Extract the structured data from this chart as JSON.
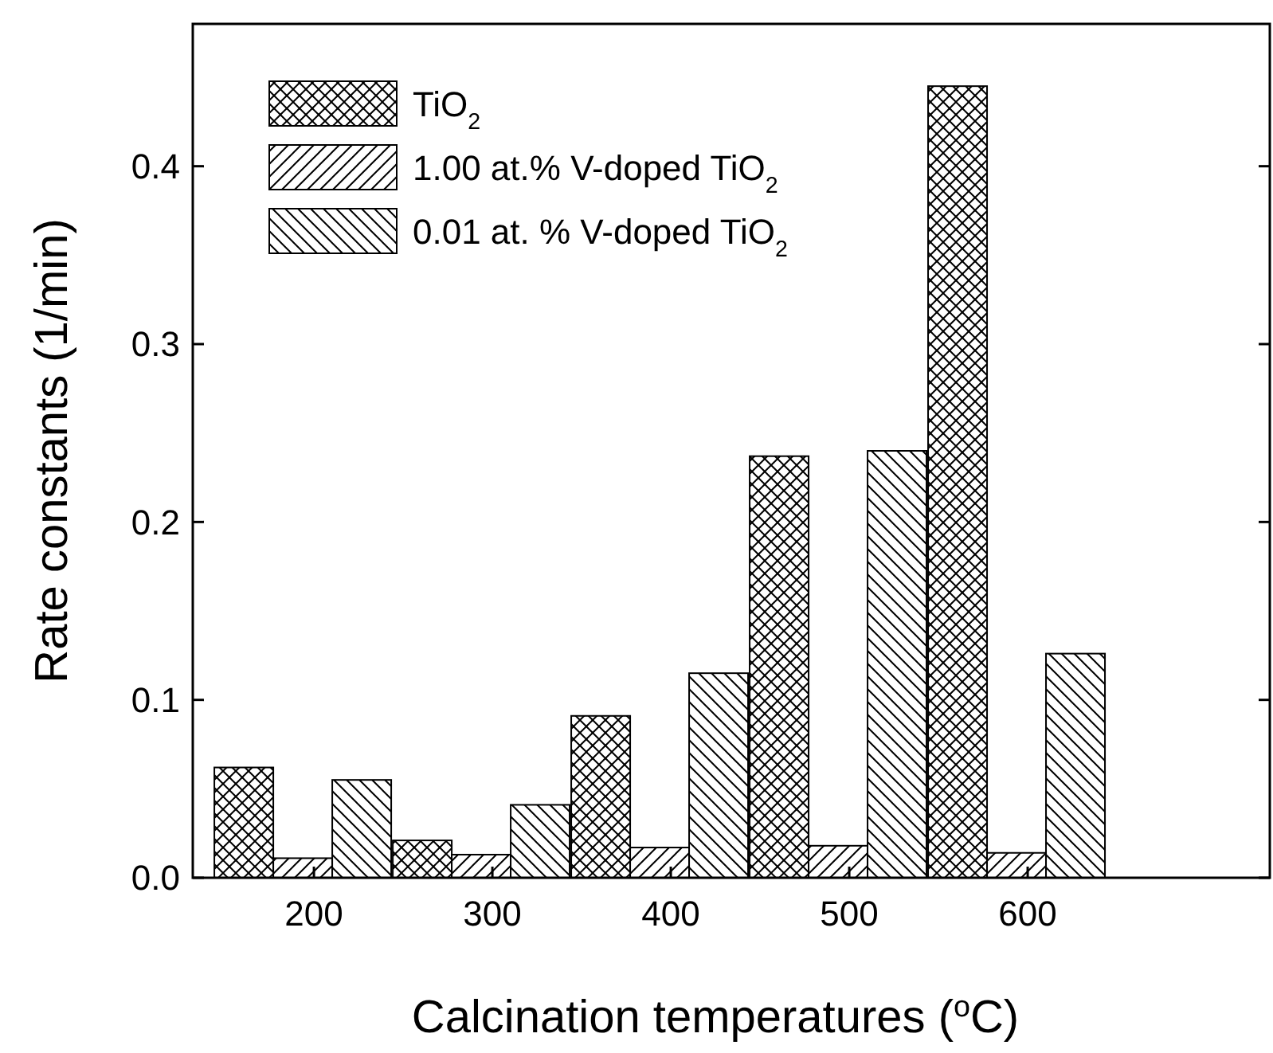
{
  "chart_data": {
    "type": "bar",
    "xlabel": "Calcination temperatures ($^{o}$C)",
    "ylabel": "Rate constants (1/min)",
    "categories": [
      "200",
      "300",
      "400",
      "500",
      "600"
    ],
    "series": [
      {
        "name": "TiO$_{2}$",
        "color": "#000000",
        "values": [
          0.062,
          0.021,
          0.091,
          0.237,
          0.445
        ]
      },
      {
        "name": "1.00 at.% V-doped TiO$_{2}$",
        "color": "#000000",
        "values": [
          0.011,
          0.013,
          0.017,
          0.018,
          0.014
        ]
      },
      {
        "name": "0.01 at. % V-doped TiO$_{2}$",
        "color": "#000000",
        "values": [
          0.055,
          0.041,
          0.115,
          0.24,
          0.126
        ]
      }
    ],
    "ylim": [
      0,
      0.48
    ],
    "yticks": [
      {
        "value": 0,
        "label": "0.0"
      },
      {
        "value": 0.1,
        "label": "0.1"
      },
      {
        "value": 0.2,
        "label": "0.2"
      },
      {
        "value": 0.3,
        "label": "0.3"
      },
      {
        "value": 0.4,
        "label": "0.4"
      }
    ],
    "legend": "top left",
    "grid": false
  }
}
